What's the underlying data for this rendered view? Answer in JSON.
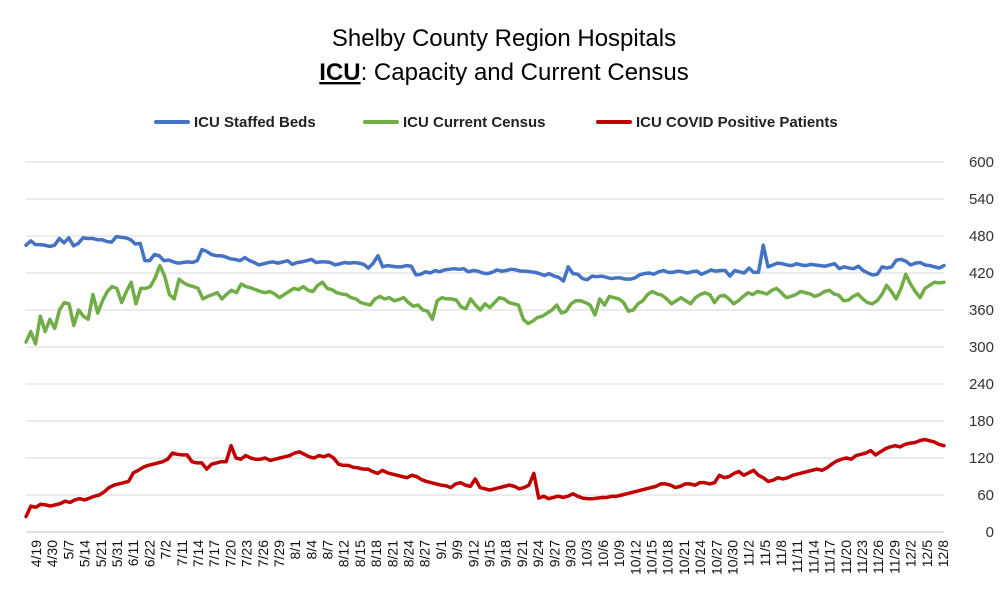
{
  "chart_data": {
    "type": "line",
    "title_line1": "Shelby County Region Hospitals",
    "title_line2_emph": "ICU",
    "title_line2_rest": ": Capacity and Current Census",
    "xlabel": "",
    "ylabel": "",
    "ylim": [
      0,
      600
    ],
    "y_ticks": [
      0,
      60,
      120,
      180,
      240,
      300,
      360,
      420,
      480,
      540,
      600
    ],
    "y_axis_position": "right",
    "grid": true,
    "legend_position": "top",
    "x_tick_labels": [
      "4/19",
      "4/30",
      "5/7",
      "5/14",
      "5/21",
      "5/31",
      "6/11",
      "6/22",
      "7/2",
      "7/11",
      "7/14",
      "7/17",
      "7/20",
      "7/23",
      "7/26",
      "7/29",
      "8/1",
      "8/4",
      "8/7",
      "8/12",
      "8/15",
      "8/18",
      "8/21",
      "8/24",
      "8/27",
      "9/1",
      "9/9",
      "9/12",
      "9/15",
      "9/18",
      "9/21",
      "9/24",
      "9/27",
      "9/30",
      "10/3",
      "10/6",
      "10/9",
      "10/12",
      "10/15",
      "10/18",
      "10/21",
      "10/24",
      "10/27",
      "10/30",
      "11/2",
      "11/5",
      "11/8",
      "11/11",
      "11/14",
      "11/17",
      "11/20",
      "11/23",
      "11/26",
      "11/29",
      "12/2",
      "12/5",
      "12/8"
    ],
    "series": [
      {
        "name": "ICU Staffed Beds",
        "color": "#4472C4",
        "values": [
          465,
          472,
          466,
          466,
          465,
          463,
          465,
          476,
          469,
          477,
          464,
          468,
          477,
          476,
          476,
          474,
          474,
          471,
          470,
          479,
          478,
          477,
          474,
          467,
          468,
          440,
          440,
          450,
          448,
          440,
          441,
          438,
          436,
          437,
          438,
          437,
          440,
          458,
          455,
          450,
          448,
          448,
          446,
          443,
          442,
          440,
          445,
          440,
          437,
          433,
          435,
          437,
          438,
          436,
          438,
          440,
          434,
          437,
          438,
          440,
          442,
          437,
          438,
          438,
          437,
          433,
          435,
          437,
          436,
          437,
          436,
          434,
          428,
          436,
          448,
          430,
          432,
          431,
          430,
          430,
          432,
          431,
          417,
          418,
          422,
          420,
          424,
          422,
          425,
          426,
          427,
          426,
          427,
          422,
          424,
          423,
          420,
          419,
          421,
          425,
          423,
          424,
          426,
          425,
          423,
          423,
          422,
          421,
          419,
          416,
          419,
          415,
          413,
          407,
          430,
          419,
          418,
          411,
          409,
          415,
          414,
          415,
          413,
          411,
          412,
          412,
          410,
          410,
          412,
          417,
          419,
          420,
          418,
          422,
          424,
          421,
          421,
          423,
          422,
          420,
          422,
          423,
          418,
          421,
          425,
          423,
          424,
          424,
          415,
          424,
          422,
          420,
          428,
          421,
          421,
          465,
          430,
          433,
          436,
          435,
          433,
          432,
          435,
          433,
          432,
          434,
          433,
          432,
          431,
          433,
          435,
          427,
          430,
          428,
          427,
          431,
          424,
          420,
          417,
          418,
          430,
          428,
          430,
          441,
          442,
          439,
          433,
          436,
          437,
          433,
          432,
          430,
          428,
          432
        ]
      },
      {
        "name": "ICU Current Census",
        "color": "#70AD47",
        "values": [
          308,
          325,
          305,
          350,
          325,
          345,
          330,
          360,
          372,
          370,
          335,
          360,
          350,
          345,
          385,
          355,
          375,
          390,
          398,
          395,
          372,
          390,
          405,
          370,
          395,
          395,
          398,
          412,
          432,
          415,
          385,
          378,
          410,
          404,
          400,
          398,
          395,
          378,
          382,
          385,
          388,
          378,
          386,
          392,
          388,
          402,
          398,
          396,
          393,
          390,
          388,
          390,
          386,
          380,
          385,
          390,
          395,
          393,
          398,
          392,
          390,
          400,
          405,
          395,
          393,
          388,
          386,
          385,
          380,
          378,
          372,
          370,
          368,
          378,
          382,
          378,
          380,
          375,
          377,
          380,
          372,
          366,
          368,
          360,
          358,
          345,
          375,
          380,
          378,
          378,
          376,
          365,
          362,
          378,
          368,
          360,
          370,
          364,
          372,
          380,
          378,
          372,
          370,
          368,
          345,
          338,
          342,
          348,
          350,
          355,
          360,
          368,
          355,
          358,
          370,
          375,
          375,
          372,
          368,
          352,
          378,
          368,
          382,
          380,
          378,
          372,
          358,
          360,
          370,
          375,
          385,
          390,
          386,
          384,
          378,
          370,
          375,
          380,
          375,
          370,
          380,
          385,
          388,
          385,
          372,
          382,
          384,
          378,
          370,
          375,
          382,
          388,
          385,
          390,
          388,
          386,
          392,
          395,
          388,
          380,
          382,
          385,
          390,
          388,
          386,
          382,
          385,
          390,
          392,
          386,
          384,
          375,
          376,
          382,
          386,
          378,
          372,
          370,
          375,
          385,
          400,
          390,
          378,
          395,
          418,
          402,
          390,
          380,
          395,
          400,
          405,
          404,
          405
        ]
      },
      {
        "name": "ICU COVID Positive Patients",
        "color": "#C00000",
        "values": [
          25,
          42,
          40,
          45,
          44,
          42,
          44,
          46,
          50,
          48,
          52,
          54,
          52,
          55,
          58,
          60,
          65,
          72,
          76,
          78,
          80,
          82,
          96,
          100,
          105,
          108,
          110,
          112,
          114,
          118,
          128,
          126,
          125,
          125,
          114,
          112,
          112,
          102,
          110,
          112,
          114,
          114,
          140,
          120,
          118,
          124,
          120,
          118,
          118,
          120,
          116,
          118,
          120,
          122,
          124,
          128,
          130,
          126,
          122,
          120,
          124,
          122,
          125,
          120,
          110,
          108,
          108,
          105,
          104,
          102,
          102,
          98,
          95,
          100,
          96,
          94,
          92,
          90,
          88,
          92,
          90,
          85,
          82,
          80,
          78,
          76,
          75,
          72,
          78,
          80,
          76,
          74,
          86,
          72,
          70,
          68,
          70,
          72,
          74,
          76,
          74,
          70,
          72,
          76,
          95,
          55,
          58,
          54,
          56,
          58,
          56,
          58,
          62,
          58,
          55,
          54,
          54,
          55,
          56,
          56,
          58,
          58,
          60,
          62,
          64,
          66,
          68,
          70,
          72,
          74,
          78,
          78,
          76,
          72,
          74,
          78,
          78,
          76,
          80,
          80,
          78,
          80,
          92,
          88,
          90,
          95,
          98,
          92,
          96,
          100,
          92,
          88,
          82,
          84,
          88,
          86,
          88,
          92,
          94,
          96,
          98,
          100,
          102,
          100,
          104,
          110,
          115,
          118,
          120,
          118,
          124,
          126,
          128,
          132,
          125,
          130,
          135,
          138,
          140,
          138,
          142,
          144,
          145,
          148,
          150,
          148,
          146,
          142,
          140
        ]
      }
    ]
  }
}
